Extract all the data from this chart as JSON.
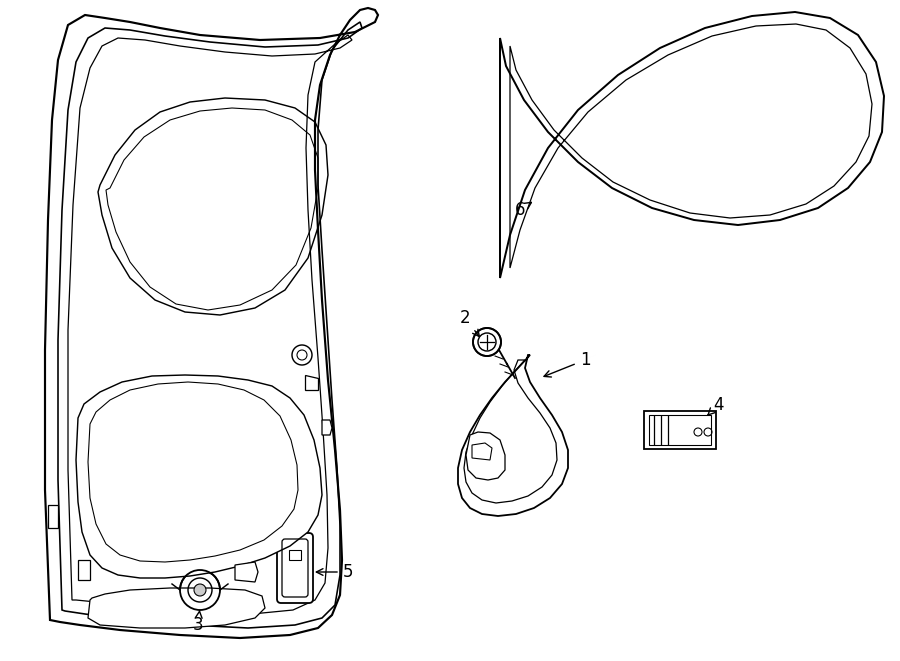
{
  "background_color": "#ffffff",
  "line_color": "#000000",
  "lw": 1.3,
  "label_fontsize": 12,
  "figsize": [
    9.0,
    6.61
  ],
  "dpi": 100
}
